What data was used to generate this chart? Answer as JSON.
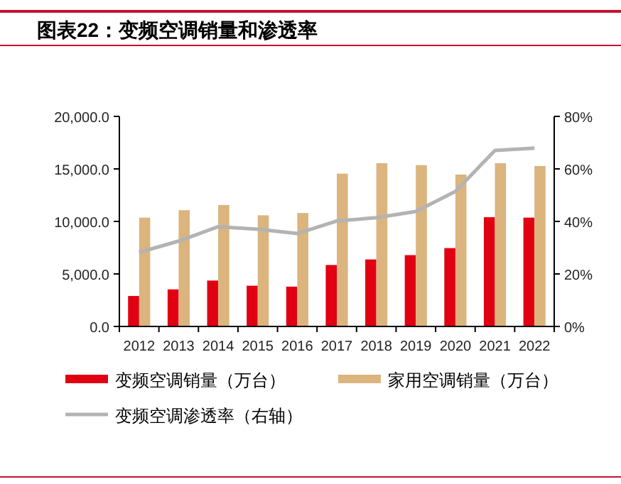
{
  "chart_data": {
    "type": "bar",
    "title": "图表22：变频空调销量和渗透率",
    "categories": [
      "2012",
      "2013",
      "2014",
      "2015",
      "2016",
      "2017",
      "2018",
      "2019",
      "2020",
      "2021",
      "2022"
    ],
    "series": [
      {
        "name": "变频空调销量（万台）",
        "color": "#e00012",
        "values": [
          2900,
          3530,
          4370,
          3880,
          3790,
          5850,
          6380,
          6790,
          7460,
          10400,
          10360
        ]
      },
      {
        "name": "家用空调销量（万台）",
        "color": "#dbb47e",
        "values": [
          10360,
          11070,
          11560,
          10580,
          10800,
          14550,
          15540,
          15360,
          14460,
          15540,
          15270
        ]
      },
      {
        "name": "变频空调渗透率（右轴）",
        "type": "line",
        "axis": "y2",
        "color": "#b3b3b3",
        "values": [
          28.2,
          32.5,
          38.0,
          37.0,
          35.4,
          40.2,
          41.4,
          43.8,
          51.4,
          67.0,
          67.9
        ]
      }
    ],
    "ylim": [
      0,
      20000
    ],
    "yticks": [
      {
        "value": 0,
        "label": "0.0"
      },
      {
        "value": 5000,
        "label": "5,000.0"
      },
      {
        "value": 10000,
        "label": "10,000.0"
      },
      {
        "value": 15000,
        "label": "15,000.0"
      },
      {
        "value": 20000,
        "label": "20,000.0"
      }
    ],
    "y2lim": [
      0,
      80
    ],
    "y2ticks": [
      {
        "value": 0,
        "label": "0%"
      },
      {
        "value": 20,
        "label": "20%"
      },
      {
        "value": 40,
        "label": "40%"
      },
      {
        "value": 60,
        "label": "60%"
      },
      {
        "value": 80,
        "label": "80%"
      }
    ],
    "grid": false,
    "legend": "bottom"
  }
}
